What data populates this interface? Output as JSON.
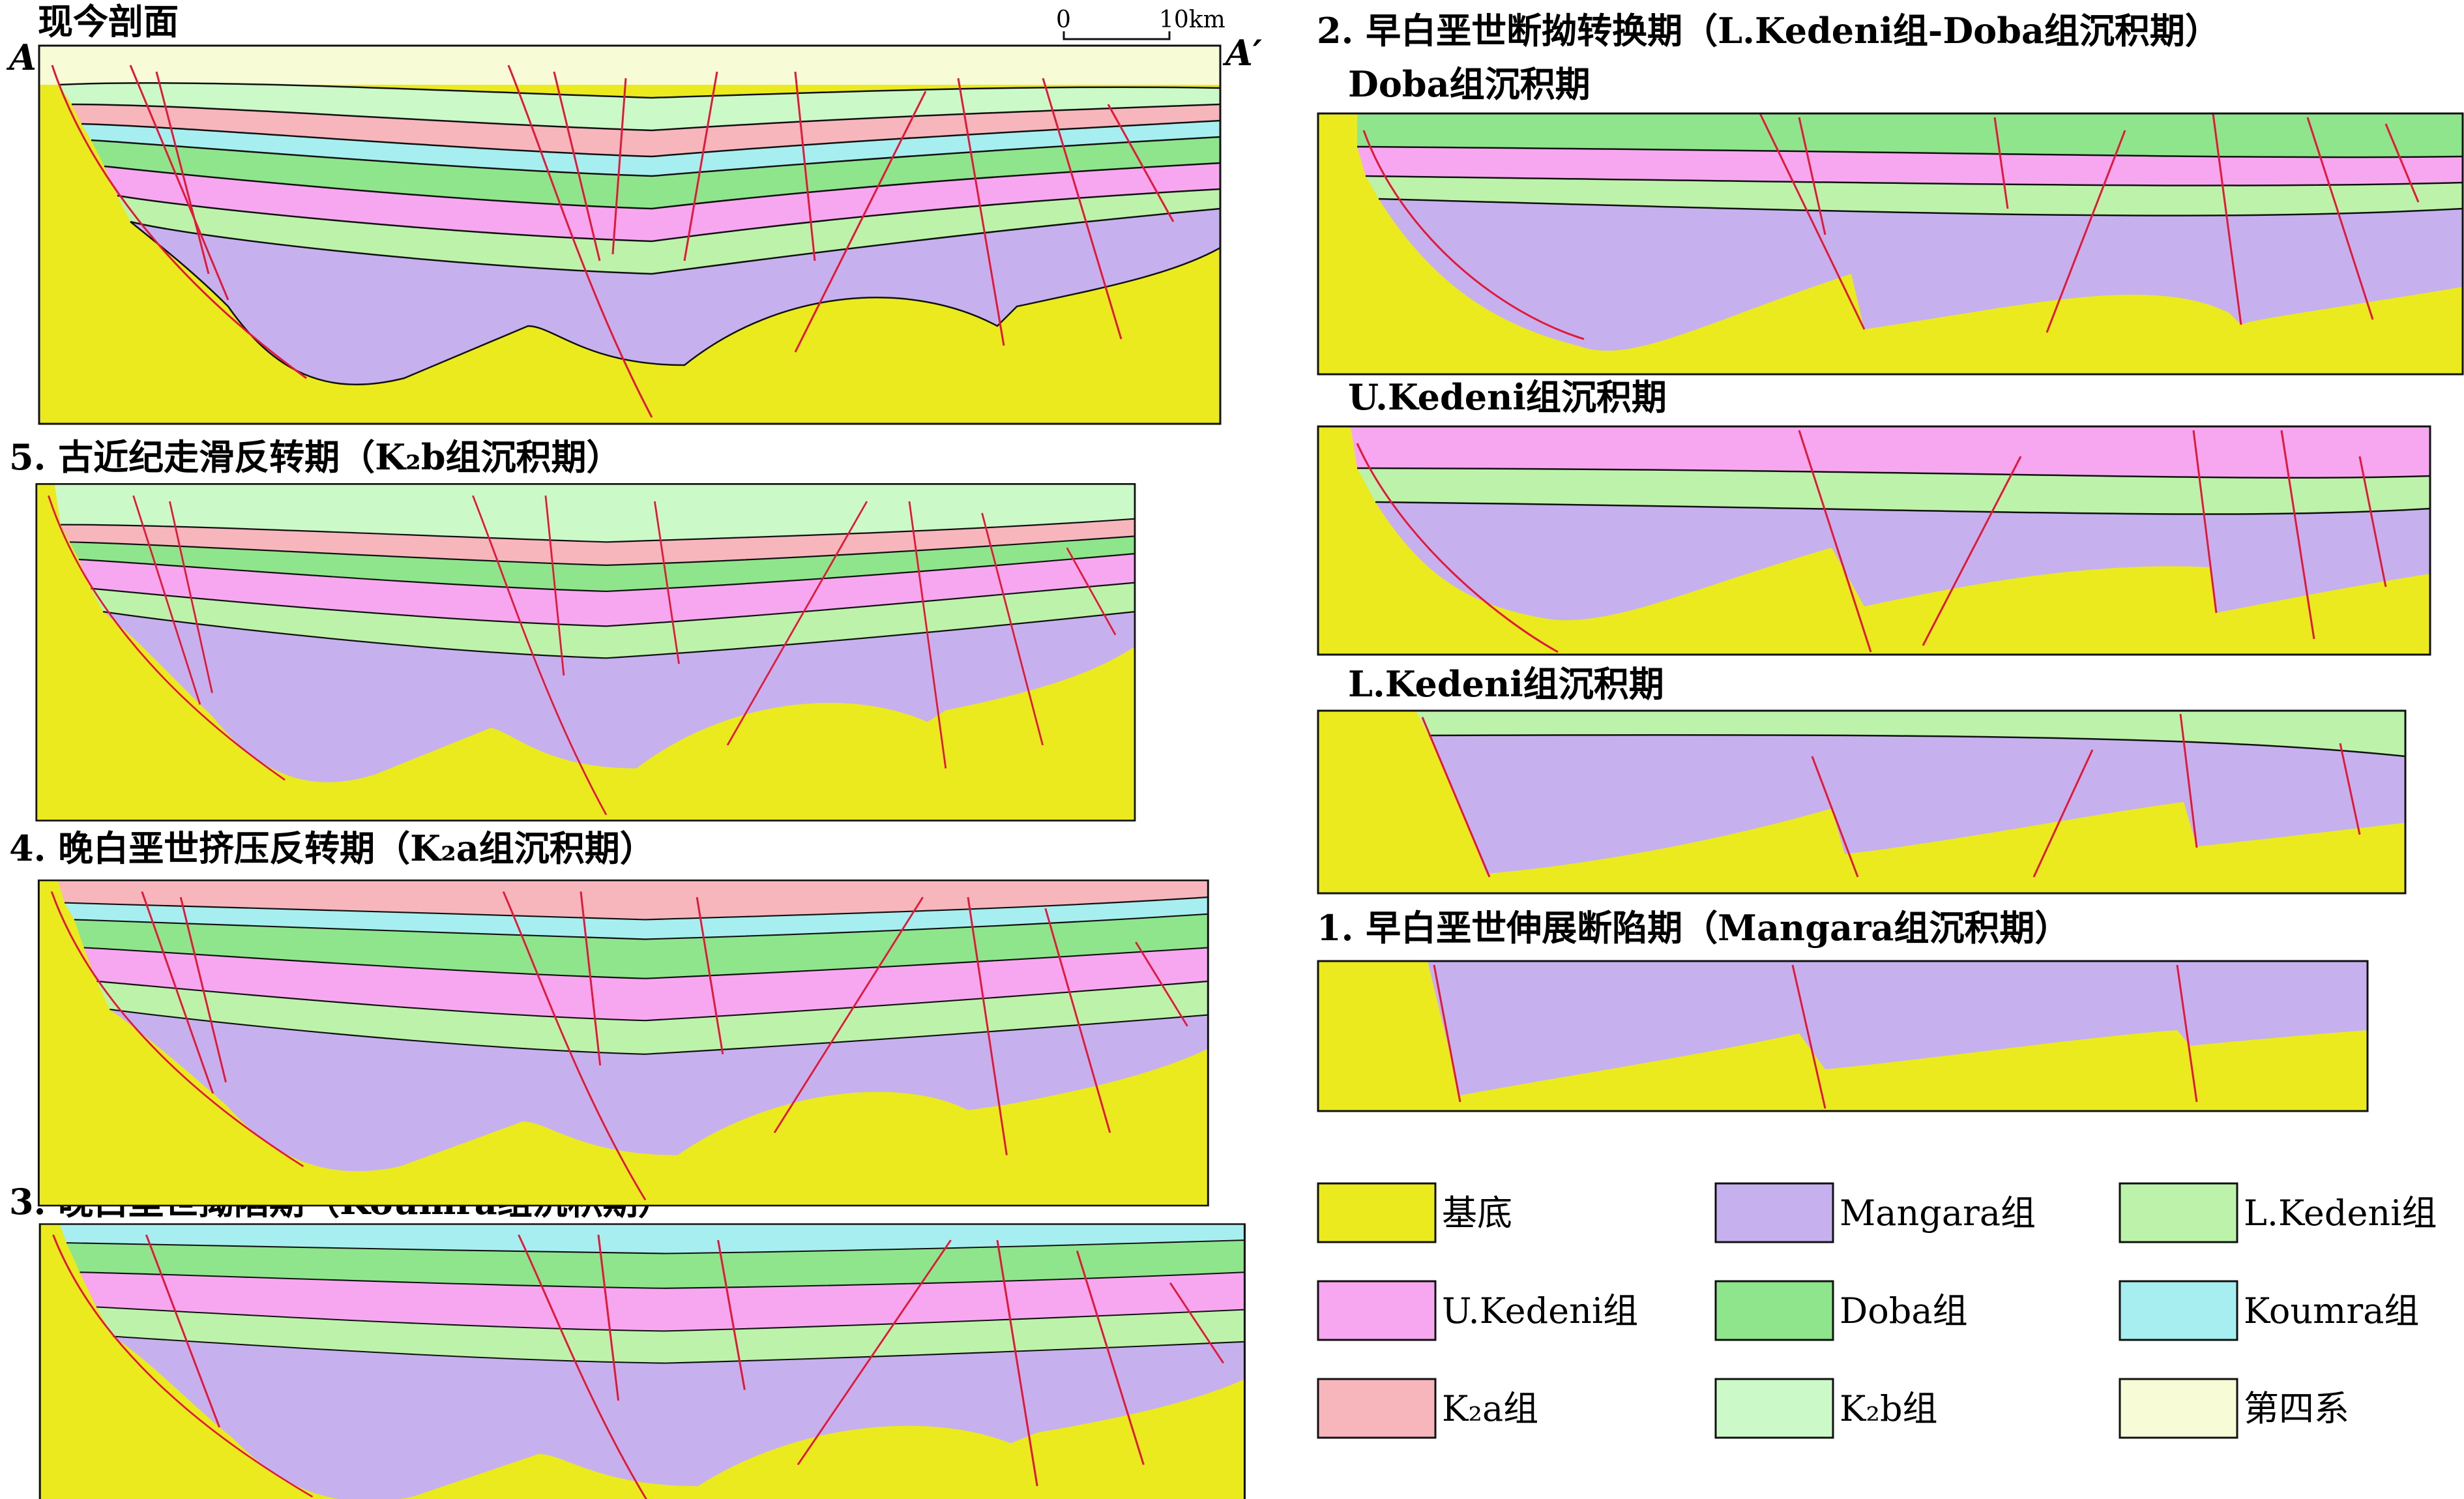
{
  "colors": {
    "basement": "#eaea1f",
    "mangara": "#c6b1ee",
    "l_kedeni": "#bdf2ab",
    "u_kedeni": "#f6a7ef",
    "doba": "#8ee58c",
    "koumra": "#a7eef0",
    "k2a": "#f6b6bc",
    "k2b": "#cbf9c8",
    "quaternary": "#f7fbd6",
    "fault": "#e0193a"
  },
  "panels": {
    "present": {
      "title": "现今剖面",
      "label_left": "A",
      "label_right": "A′",
      "scale_zero": "0",
      "scale_max": "10km"
    },
    "p5": {
      "title": "5. 古近纪走滑反转期（K₂b组沉积期）"
    },
    "p4": {
      "title": "4. 晚白垩世挤压反转期（K₂a组沉积期）"
    },
    "p3": {
      "title": "3. 晚白垩世拗陷期（Koumra组沉积期）"
    },
    "p2": {
      "title": "2. 早白垩世断拗转换期（L.Kedeni组-Doba组沉积期）",
      "sub_doba": "Doba组沉积期",
      "sub_ukedeni": "U.Kedeni组沉积期",
      "sub_lkedeni": "L.Kedeni组沉积期"
    },
    "p1": {
      "title": "1. 早白垩世伸展断陷期（Mangara组沉积期）"
    }
  },
  "legend": [
    {
      "label": "基底",
      "icon": "basement-swatch",
      "color_key": "basement"
    },
    {
      "label": "Mangara组",
      "icon": "mangara-swatch",
      "color_key": "mangara"
    },
    {
      "label": "L.Kedeni组",
      "icon": "l-kedeni-swatch",
      "color_key": "l_kedeni"
    },
    {
      "label": "U.Kedeni组",
      "icon": "u-kedeni-swatch",
      "color_key": "u_kedeni"
    },
    {
      "label": "Doba组",
      "icon": "doba-swatch",
      "color_key": "doba"
    },
    {
      "label": "Koumra组",
      "icon": "koumra-swatch",
      "color_key": "koumra"
    },
    {
      "label": "K₂a组",
      "icon": "k2a-swatch",
      "color_key": "k2a"
    },
    {
      "label": "K₂b组",
      "icon": "k2b-swatch",
      "color_key": "k2b"
    },
    {
      "label": "第四系",
      "icon": "quaternary-swatch",
      "color_key": "quaternary"
    }
  ]
}
